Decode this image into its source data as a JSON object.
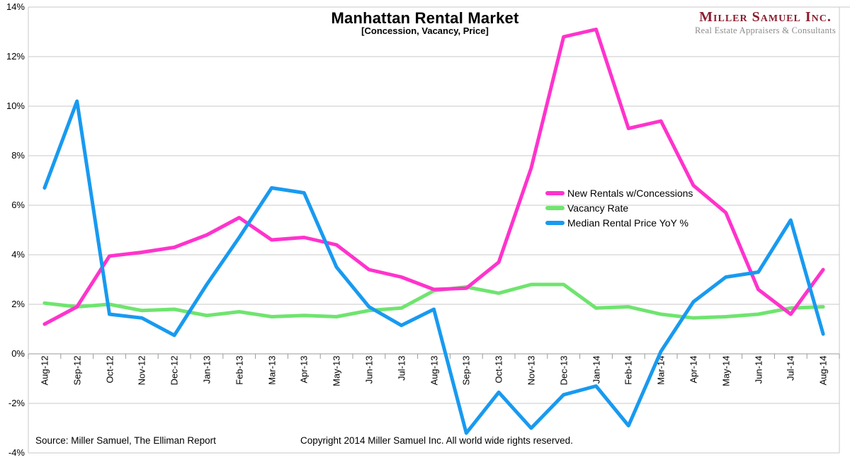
{
  "header": {
    "title": "Manhattan Rental Market",
    "subtitle": "[Concession, Vacancy, Price]"
  },
  "logo": {
    "name": "Miller Samuel Inc.",
    "tagline": "Real Estate Appraisers & Consultants",
    "name_color": "#8c1d2f",
    "tagline_color": "#8a8a8a"
  },
  "footer": {
    "source": "Source: Miller Samuel, The Elliman Report",
    "copyright": "Copyright 2014 Miller Samuel Inc.  All world wide rights reserved."
  },
  "chart_data": {
    "type": "line",
    "title": "Manhattan Rental Market",
    "subtitle": "[Concession, Vacancy, Price]",
    "categories": [
      "Aug-12",
      "Sep-12",
      "Oct-12",
      "Nov-12",
      "Dec-12",
      "Jan-13",
      "Feb-13",
      "Mar-13",
      "Apr-13",
      "May-13",
      "Jun-13",
      "Jul-13",
      "Aug-13",
      "Sep-13",
      "Oct-13",
      "Nov-13",
      "Dec-13",
      "Jan-14",
      "Feb-14",
      "Mar-14",
      "Apr-14",
      "May-14",
      "Jun-14",
      "Jul-14",
      "Aug-14"
    ],
    "series": [
      {
        "name": "New Rentals w/Concessions",
        "color": "#ff33cc",
        "values": [
          1.2,
          1.9,
          3.95,
          4.1,
          4.3,
          4.8,
          5.5,
          4.6,
          4.7,
          4.4,
          3.4,
          3.1,
          2.6,
          2.65,
          3.7,
          7.5,
          12.8,
          13.1,
          9.1,
          9.4,
          6.8,
          5.7,
          2.6,
          1.6,
          3.4
        ]
      },
      {
        "name": "Vacancy Rate",
        "color": "#6fe46f",
        "values": [
          2.05,
          1.9,
          2.0,
          1.75,
          1.8,
          1.55,
          1.7,
          1.5,
          1.55,
          1.5,
          1.75,
          1.85,
          2.55,
          2.7,
          2.45,
          2.8,
          2.8,
          1.85,
          1.9,
          1.6,
          1.45,
          1.5,
          1.6,
          1.85,
          1.9
        ]
      },
      {
        "name": "Median Rental Price YoY %",
        "color": "#189af0",
        "values": [
          6.7,
          10.2,
          1.6,
          1.45,
          0.75,
          2.8,
          4.7,
          6.7,
          6.5,
          3.5,
          1.9,
          1.15,
          1.8,
          -3.2,
          -1.55,
          -3.0,
          -1.65,
          -1.3,
          -2.9,
          0.1,
          2.1,
          3.1,
          3.3,
          5.4,
          0.8
        ]
      }
    ],
    "ylim": [
      -4,
      14
    ],
    "ytick_step": 2,
    "ytick_format": "percent",
    "grid": "horizontal",
    "legend_position": "inside-right",
    "line_width": 5,
    "grid_color": "#c9c9c9",
    "axis_color": "#999999"
  }
}
